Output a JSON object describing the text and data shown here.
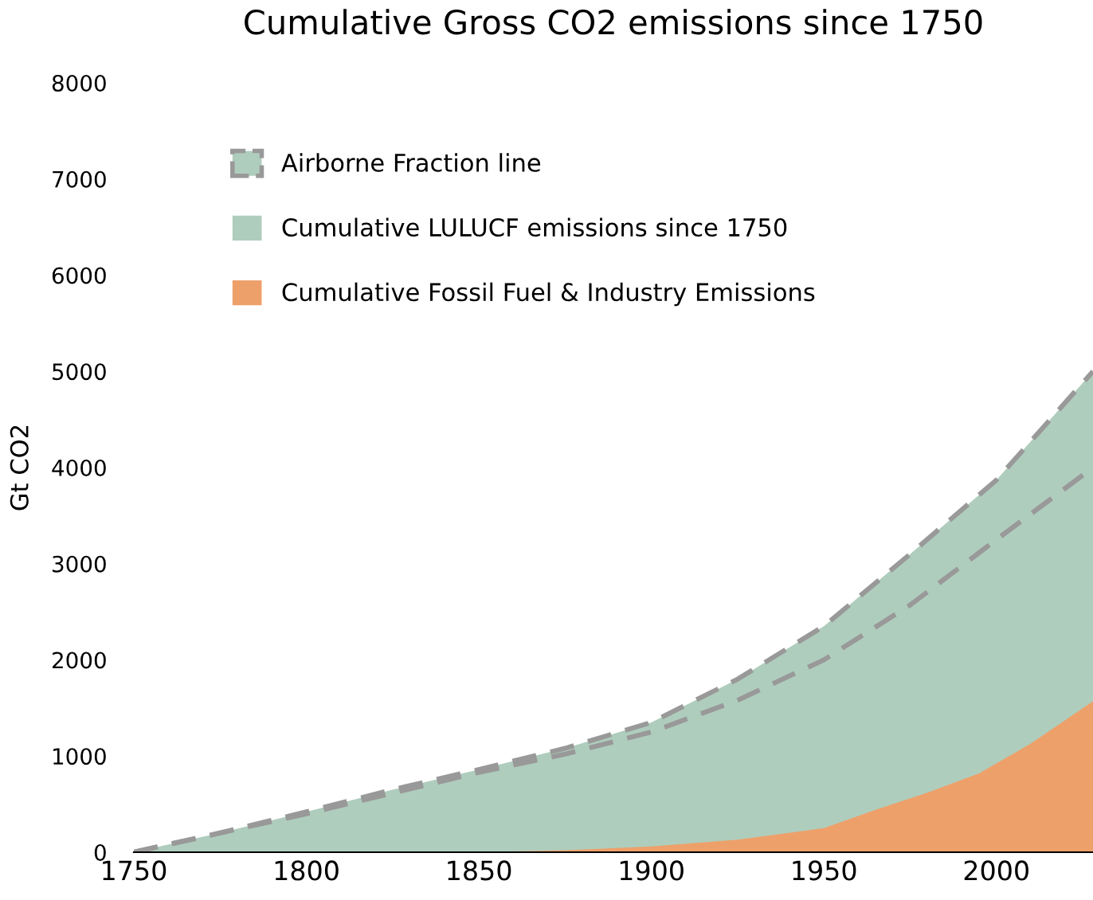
{
  "chart_data": {
    "type": "area",
    "title": "Cumulative Gross CO2 emissions since 1750",
    "ylabel": "Gt CO2",
    "xlim": [
      1750,
      2028
    ],
    "xticks": [
      1750,
      1800,
      1850,
      1900,
      1950,
      2000
    ],
    "ylim": [
      0,
      8000
    ],
    "yticks": [
      0,
      1000,
      2000,
      3000,
      4000,
      5000,
      6000,
      7000,
      8000
    ],
    "grid": false,
    "legend": "top left",
    "series": [
      {
        "type": "line",
        "name": "Airborne Fraction line",
        "color": "#999999",
        "line_style": "dashed",
        "x": [
          1750,
          1800,
          1850,
          1875,
          1900,
          1925,
          1950,
          1975,
          2000,
          2028
        ],
        "values": [
          0,
          400,
          830,
          1020,
          1250,
          1580,
          2000,
          2570,
          3250,
          4000
        ]
      },
      {
        "name": "Cumulative LULUCF emissions since 1750",
        "color": "#afcdbd",
        "line_style": "dashed",
        "x": [
          1750,
          1775,
          1800,
          1825,
          1850,
          1875,
          1900,
          1925,
          1950,
          1975,
          2000,
          2028
        ],
        "values": [
          0,
          200,
          420,
          650,
          860,
          1080,
          1350,
          1800,
          2350,
          3100,
          3870,
          5000
        ]
      },
      {
        "name": "Cumulative Fossil Fuel & Industry Emissions",
        "color": "#eea06a",
        "x": [
          1750,
          1850,
          1875,
          1900,
          1925,
          1950,
          1965,
          1980,
          1995,
          2010,
          2028
        ],
        "values": [
          0,
          0,
          20,
          60,
          130,
          250,
          440,
          620,
          820,
          1130,
          1570
        ]
      }
    ]
  }
}
